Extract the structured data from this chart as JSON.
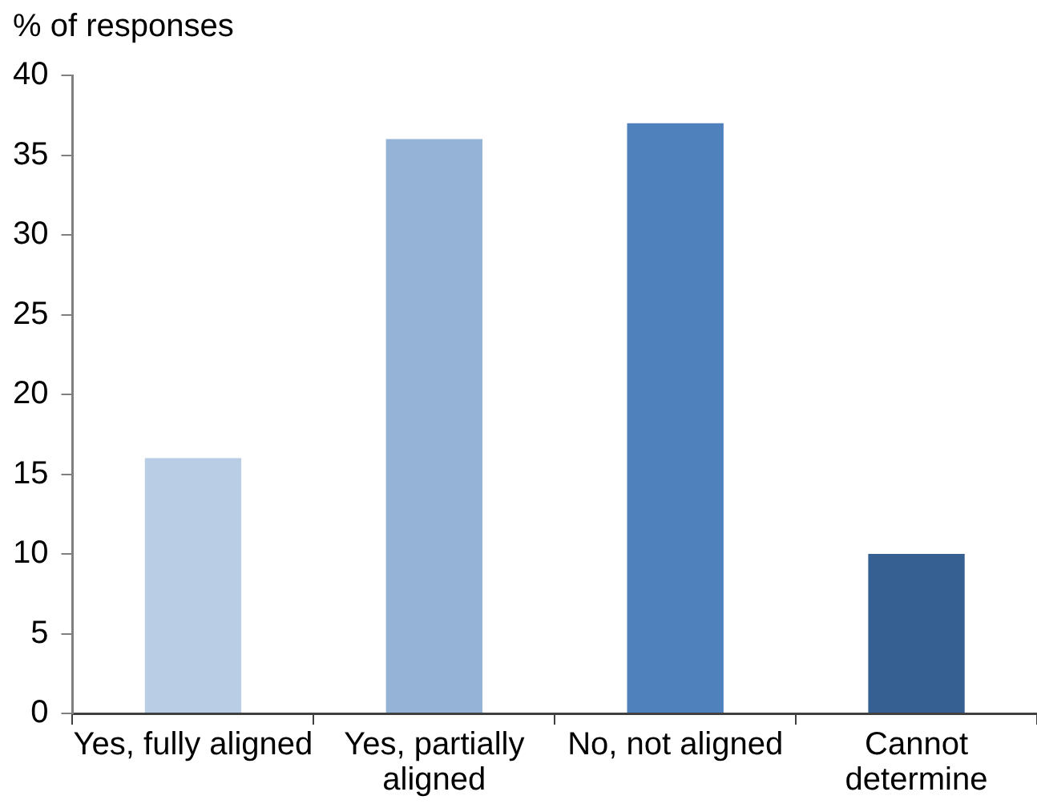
{
  "chart_data": {
    "type": "bar",
    "ylabel": "% of responses",
    "categories": [
      "Yes, fully aligned",
      "Yes, partially aligned",
      "No, not aligned",
      "Cannot determine"
    ],
    "values": [
      16,
      36,
      37,
      10
    ],
    "colors": [
      "#b9cde5",
      "#95b3d7",
      "#4f81bd",
      "#376092"
    ],
    "ylim": [
      0,
      40
    ],
    "yticks": [
      0,
      5,
      10,
      15,
      20,
      25,
      30,
      35,
      40
    ]
  }
}
